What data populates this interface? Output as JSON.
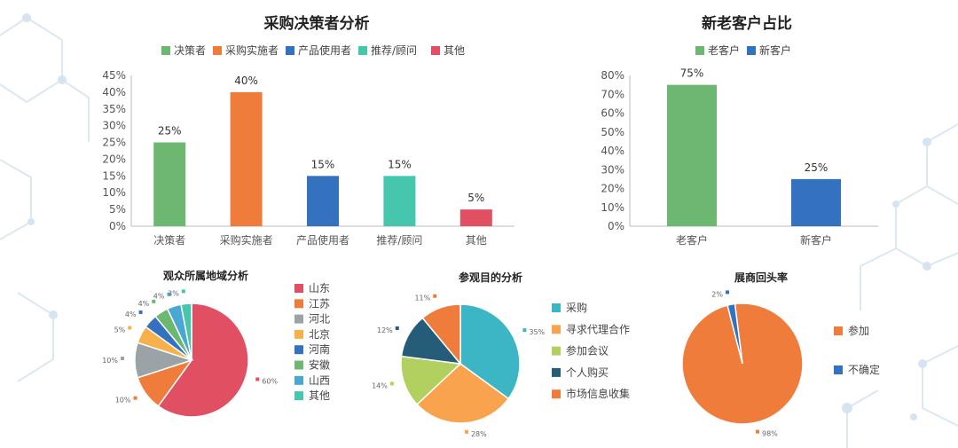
{
  "colors": {
    "green": "#6db870",
    "orange": "#f07c3c",
    "blue": "#3471bf",
    "teal": "#46c7ad",
    "red": "#e04f62",
    "gray": "#9ba3a6",
    "yellow": "#f7b04a",
    "lightblue": "#4aa7d3",
    "pie_teal": "#3cb5c4",
    "pie_orange": "#f9a34e",
    "pie_lime": "#b2d05f",
    "pie_navy": "#255d78",
    "pie_orange2": "#f07c3c"
  },
  "chart_data": [
    {
      "id": "decision-makers",
      "type": "bar",
      "title": "采购决策者分析",
      "categories": [
        "决策者",
        "采购实施者",
        "产品使用者",
        "推荐/顾问",
        "其他"
      ],
      "values": [
        25,
        40,
        15,
        15,
        5
      ],
      "value_labels": [
        "25%",
        "40%",
        "15%",
        "15%",
        "5%"
      ],
      "colors": [
        "#6db870",
        "#f07c3c",
        "#3471bf",
        "#46c7ad",
        "#e04f62"
      ],
      "ylim": [
        0,
        45
      ],
      "yticks": [
        "0%",
        "5%",
        "10%",
        "15%",
        "20%",
        "25%",
        "30%",
        "35%",
        "40%",
        "45%"
      ],
      "legend": "top",
      "grid": false
    },
    {
      "id": "customer-ratio",
      "type": "bar",
      "title": "新老客户占比",
      "categories": [
        "老客户",
        "新客户"
      ],
      "values": [
        75,
        25
      ],
      "value_labels": [
        "75%",
        "25%"
      ],
      "colors": [
        "#6db870",
        "#3471bf"
      ],
      "ylim": [
        0,
        80
      ],
      "yticks": [
        "0%",
        "10%",
        "20%",
        "30%",
        "40%",
        "50%",
        "60%",
        "70%",
        "80%"
      ],
      "legend": "top",
      "grid": false
    },
    {
      "id": "region",
      "type": "pie",
      "title": "观众所属地域分析",
      "labels": [
        "山东",
        "江苏",
        "河北",
        "北京",
        "河南",
        "安徽",
        "山西",
        "其他"
      ],
      "values": [
        60,
        10,
        10,
        5,
        4,
        4,
        4,
        3
      ],
      "value_labels": [
        "60%",
        "10%",
        "10%",
        "5%",
        "4%",
        "4%",
        "4%",
        "3%"
      ],
      "colors": [
        "#e04f62",
        "#f07c3c",
        "#9ba3a6",
        "#f7b04a",
        "#3471bf",
        "#6db870",
        "#4aa7d3",
        "#46c7ad"
      ],
      "legend": "right"
    },
    {
      "id": "purpose",
      "type": "pie",
      "title": "参观目的分析",
      "labels": [
        "采购",
        "寻求代理合作",
        "参加会议",
        "个人购买",
        "市场信息收集"
      ],
      "values": [
        35,
        28,
        14,
        12,
        11
      ],
      "value_labels": [
        "35%",
        "28%",
        "14%",
        "12%",
        "11%"
      ],
      "colors": [
        "#3cb5c4",
        "#f9a34e",
        "#b2d05f",
        "#255d78",
        "#f07c3c"
      ],
      "legend": "right"
    },
    {
      "id": "return-rate",
      "type": "pie",
      "title": "展商回头率",
      "labels": [
        "参加",
        "不确定"
      ],
      "values": [
        98,
        2
      ],
      "value_labels": [
        "98%",
        "2%"
      ],
      "colors": [
        "#f07c3c",
        "#3471bf"
      ],
      "legend": "right"
    }
  ]
}
